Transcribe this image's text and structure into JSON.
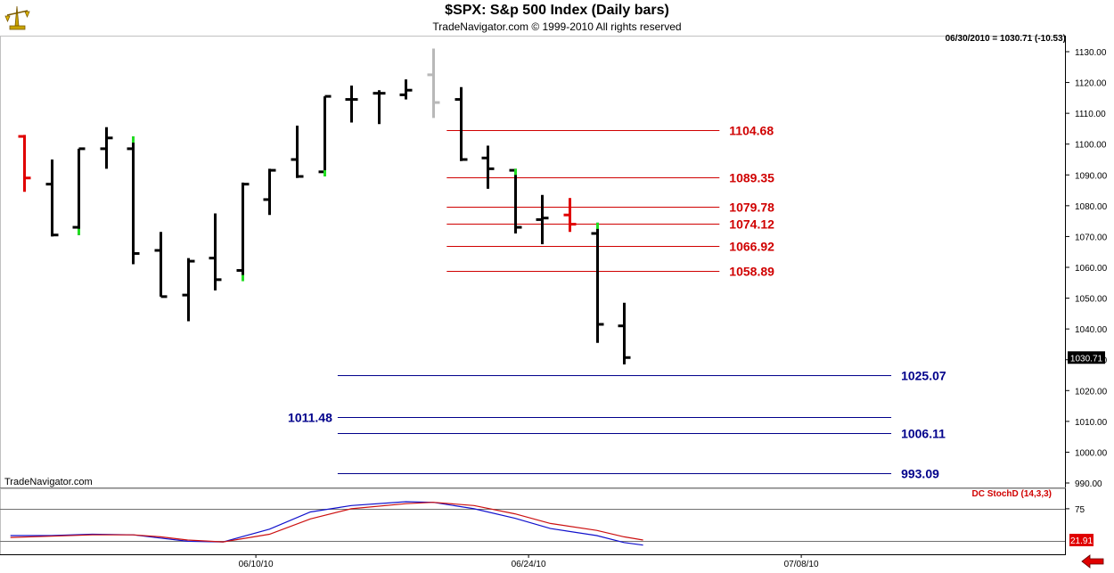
{
  "header": {
    "title": "$SPX:  S&p 500 Index  (Daily bars)",
    "subtitle": "TradeNavigator.com © 1999-2010 All rights reserved"
  },
  "readout": "06/30/2010 = 1030.71 (-10.53)",
  "brand_label": "TradeNavigator.com",
  "indicator_label": "DC StochD (14,3,3)",
  "colors": {
    "bar_default": "#000000",
    "bar_up_tick": "#22dd22",
    "bar_red": "#e00000",
    "bar_gray": "#b8b8b8",
    "resistance_line": "#d00000",
    "support_line": "#00008b",
    "stoch_k": "#1010cc",
    "stoch_d": "#cc1010"
  },
  "chart_data": [
    {
      "type": "ohlc",
      "name": "$SPX",
      "ylim": [
        988,
        1133
      ],
      "yticks": [
        990,
        1000,
        1010,
        1020,
        1030,
        1040,
        1050,
        1060,
        1070,
        1080,
        1090,
        1100,
        1110,
        1120,
        1130
      ],
      "xtick_labels": [
        {
          "label": "06/10/10",
          "bar_index": 8.5
        },
        {
          "label": "06/24/10",
          "bar_index": 18.5
        },
        {
          "label": "07/08/10",
          "bar_index": 28.5
        }
      ],
      "last_price_label": "1030.71",
      "bars": [
        {
          "date": "05/27",
          "o": 1102.5,
          "h": 1103,
          "l": 1084.5,
          "c": 1089,
          "color": "red"
        },
        {
          "date": "05/28",
          "o": 1087,
          "h": 1095,
          "l": 1070,
          "c": 1070.5,
          "color": "black"
        },
        {
          "date": "06/01",
          "o": 1073,
          "h": 1098.5,
          "l": 1070.5,
          "c": 1098.5,
          "color": "black",
          "up_tick": "low"
        },
        {
          "date": "06/02",
          "o": 1098.5,
          "h": 1105.5,
          "l": 1092,
          "c": 1102,
          "color": "black"
        },
        {
          "date": "06/03",
          "o": 1098.5,
          "h": 1102.5,
          "l": 1061,
          "c": 1064.5,
          "color": "black",
          "up_tick": "high"
        },
        {
          "date": "06/04",
          "o": 1065.5,
          "h": 1071.5,
          "l": 1050.5,
          "c": 1050.5,
          "color": "black"
        },
        {
          "date": "06/07",
          "o": 1051,
          "h": 1063,
          "l": 1042.5,
          "c": 1062,
          "color": "black"
        },
        {
          "date": "06/08",
          "o": 1063,
          "h": 1077.5,
          "l": 1052.5,
          "c": 1056,
          "color": "black"
        },
        {
          "date": "06/09",
          "o": 1059,
          "h": 1087.5,
          "l": 1055.5,
          "c": 1087,
          "color": "black",
          "up_tick": "low"
        },
        {
          "date": "06/10",
          "o": 1082,
          "h": 1092,
          "l": 1077,
          "c": 1091.5,
          "color": "black"
        },
        {
          "date": "06/11",
          "o": 1095,
          "h": 1106,
          "l": 1089,
          "c": 1089.5,
          "color": "black"
        },
        {
          "date": "06/14",
          "o": 1091,
          "h": 1115.5,
          "l": 1089.5,
          "c": 1115.5,
          "color": "black",
          "up_tick": "low"
        },
        {
          "date": "06/15",
          "o": 1114.5,
          "h": 1119,
          "l": 1107,
          "c": 1114.5,
          "color": "black"
        },
        {
          "date": "06/16",
          "o": 1116.5,
          "h": 1117.5,
          "l": 1106.5,
          "c": 1116.5,
          "color": "black"
        },
        {
          "date": "06/17",
          "o": 1116,
          "h": 1121,
          "l": 1114.5,
          "c": 1117.5,
          "color": "black"
        },
        {
          "date": "06/18",
          "o": 1122.5,
          "h": 1131,
          "l": 1108.5,
          "c": 1113.5,
          "color": "gray"
        },
        {
          "date": "06/21",
          "o": 1114.5,
          "h": 1118.5,
          "l": 1094.5,
          "c": 1095,
          "color": "black"
        },
        {
          "date": "06/22",
          "o": 1095.5,
          "h": 1099.5,
          "l": 1085.5,
          "c": 1092,
          "color": "black"
        },
        {
          "date": "06/23",
          "o": 1091.5,
          "h": 1092,
          "l": 1071,
          "c": 1073,
          "color": "black",
          "up_tick": "high"
        },
        {
          "date": "06/24",
          "o": 1075.5,
          "h": 1083.5,
          "l": 1067.5,
          "c": 1076,
          "color": "black"
        },
        {
          "date": "06/25",
          "o": 1077,
          "h": 1082.5,
          "l": 1071.5,
          "c": 1074,
          "color": "red"
        },
        {
          "date": "06/28",
          "o": 1071,
          "h": 1074.5,
          "l": 1035.5,
          "c": 1041.5,
          "color": "black",
          "up_tick": "high"
        },
        {
          "date": "06/29",
          "o": 1041,
          "h": 1048.5,
          "l": 1028.5,
          "c": 1030.71,
          "color": "black"
        }
      ],
      "levels": [
        {
          "value": 1104.68,
          "label": "1104.68",
          "kind": "resistance",
          "x_from": 15.5,
          "x_to": 25.5,
          "label_side": "right"
        },
        {
          "value": 1089.35,
          "label": "1089.35",
          "kind": "resistance",
          "x_from": 15.5,
          "x_to": 25.5,
          "label_side": "right"
        },
        {
          "value": 1079.78,
          "label": "1079.78",
          "kind": "resistance",
          "x_from": 15.5,
          "x_to": 25.5,
          "label_side": "right"
        },
        {
          "value": 1074.12,
          "label": "1074.12",
          "kind": "resistance",
          "x_from": 15.5,
          "x_to": 25.5,
          "label_side": "right"
        },
        {
          "value": 1066.92,
          "label": "1066.92",
          "kind": "resistance",
          "x_from": 15.5,
          "x_to": 25.5,
          "label_side": "right"
        },
        {
          "value": 1058.89,
          "label": "1058.89",
          "kind": "resistance",
          "x_from": 15.5,
          "x_to": 25.5,
          "label_side": "right"
        },
        {
          "value": 1025.07,
          "label": "1025.07",
          "kind": "support",
          "x_from": 11.5,
          "x_to": 31.8,
          "label_side": "right"
        },
        {
          "value": 1011.48,
          "label": "1011.48",
          "kind": "support",
          "x_from": 11.5,
          "x_to": 31.8,
          "label_side": "left"
        },
        {
          "value": 1006.11,
          "label": "1006.11",
          "kind": "support",
          "x_from": 11.5,
          "x_to": 31.8,
          "label_side": "right"
        },
        {
          "value": 993.09,
          "label": "993.09",
          "kind": "support",
          "x_from": 11.5,
          "x_to": 31.8,
          "label_side": "right"
        }
      ]
    },
    {
      "type": "line",
      "name": "DC StochD (14,3,3)",
      "ylim": [
        5,
        100
      ],
      "yticks": [
        75
      ],
      "ref_lines": [
        75,
        25
      ],
      "last_value_label": "21.91",
      "series": [
        {
          "name": "K",
          "color": "blue",
          "values": [
            {
              "x": -0.5,
              "y": 33
            },
            {
              "x": 1,
              "y": 33
            },
            {
              "x": 2.5,
              "y": 35
            },
            {
              "x": 4,
              "y": 34
            },
            {
              "x": 5,
              "y": 29
            },
            {
              "x": 6,
              "y": 24
            },
            {
              "x": 7.3,
              "y": 23
            },
            {
              "x": 9,
              "y": 43
            },
            {
              "x": 10.5,
              "y": 70
            },
            {
              "x": 12,
              "y": 80
            },
            {
              "x": 14,
              "y": 86
            },
            {
              "x": 15,
              "y": 85
            },
            {
              "x": 16.5,
              "y": 75
            },
            {
              "x": 18,
              "y": 60
            },
            {
              "x": 19.3,
              "y": 44
            },
            {
              "x": 21,
              "y": 33
            },
            {
              "x": 22,
              "y": 22
            },
            {
              "x": 22.7,
              "y": 18
            }
          ]
        },
        {
          "name": "D",
          "color": "red",
          "values": [
            {
              "x": -0.5,
              "y": 30
            },
            {
              "x": 1,
              "y": 32
            },
            {
              "x": 2.5,
              "y": 34
            },
            {
              "x": 4,
              "y": 34
            },
            {
              "x": 5,
              "y": 31
            },
            {
              "x": 6,
              "y": 26
            },
            {
              "x": 7.3,
              "y": 23
            },
            {
              "x": 9,
              "y": 35
            },
            {
              "x": 10.5,
              "y": 59
            },
            {
              "x": 12,
              "y": 75
            },
            {
              "x": 14,
              "y": 83
            },
            {
              "x": 15,
              "y": 85
            },
            {
              "x": 16.5,
              "y": 80
            },
            {
              "x": 18,
              "y": 67
            },
            {
              "x": 19.3,
              "y": 52
            },
            {
              "x": 21,
              "y": 41
            },
            {
              "x": 22,
              "y": 31
            },
            {
              "x": 22.7,
              "y": 26
            }
          ]
        }
      ]
    }
  ]
}
